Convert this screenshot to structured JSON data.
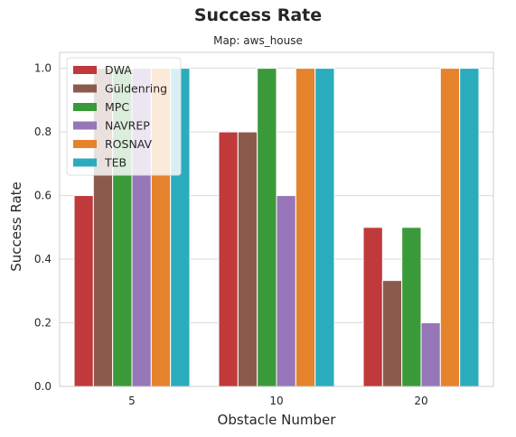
{
  "chart_data": {
    "type": "bar",
    "title": "Success Rate",
    "subtitle": "Map: aws_house",
    "xlabel": "Obstacle Number",
    "ylabel": "Success Rate",
    "categories": [
      "5",
      "10",
      "20"
    ],
    "ylim": [
      0,
      1.05
    ],
    "yticks": [
      "0.0",
      "0.2",
      "0.4",
      "0.6",
      "0.8",
      "1.0"
    ],
    "grid": true,
    "legend_position": "top-left",
    "series": [
      {
        "name": "DWA",
        "color": "#c0393b",
        "values": [
          0.6,
          0.8,
          0.5
        ]
      },
      {
        "name": "Güldenring",
        "color": "#8c5a4c",
        "values": [
          1.0,
          0.8,
          0.333
        ]
      },
      {
        "name": "MPC",
        "color": "#3a9a3a",
        "values": [
          1.0,
          1.0,
          0.5
        ]
      },
      {
        "name": "NAVREP",
        "color": "#9676b9",
        "values": [
          1.0,
          0.6,
          0.2
        ]
      },
      {
        "name": "ROSNAV",
        "color": "#e5832c",
        "values": [
          1.0,
          1.0,
          1.0
        ]
      },
      {
        "name": "TEB",
        "color": "#2aacbd",
        "values": [
          1.0,
          1.0,
          1.0
        ]
      }
    ]
  }
}
